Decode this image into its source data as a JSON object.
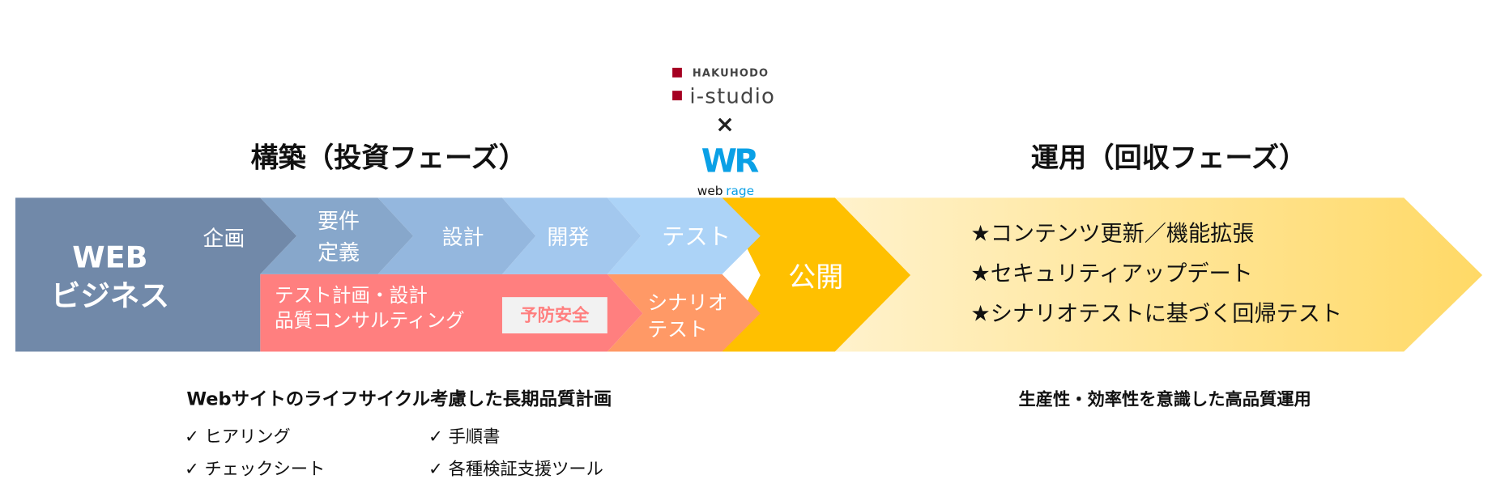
{
  "logo": {
    "hakuhodo": "HAKUHODO",
    "istudio": "i-studio",
    "times": "×",
    "webrage_mark": "WR",
    "webrage_web": "web",
    "webrage_rage": "rage"
  },
  "headings": {
    "build": "構築（投資フェーズ）",
    "operate": "運用（回収フェーズ）"
  },
  "flow": {
    "web_business": [
      "WEB",
      "ビジネス"
    ],
    "planning": "企画",
    "requirements": [
      "要件",
      "定義"
    ],
    "design": "設計",
    "development": "開発",
    "test": "テスト",
    "test_planning": [
      "テスト計画・設計",
      "品質コンサルティング"
    ],
    "prevention_badge": "予防安全",
    "scenario_test": [
      "シナリオ",
      "テスト"
    ],
    "release": "公開",
    "operations": [
      "★コンテンツ更新／機能拡張",
      "★セキュリティアップデート",
      "★シナリオテストに基づく回帰テスト"
    ]
  },
  "notes": {
    "build_title": "Webサイトのライフサイクル考慮した長期品質計画",
    "build_items": [
      "✓ ヒアリング",
      "✓ 手順書",
      "✓ チェックシート",
      "✓ 各種検証支援ツール"
    ],
    "operate_title": "生産性・効率性を意識した高品質運用"
  },
  "colors": {
    "web_business": "#7189a9",
    "requirements": "#87a7cb",
    "design": "#94b7de",
    "development": "#a3c8ee",
    "test": "#acd3f7",
    "test_planning": "#ff7f7f",
    "scenario_test": "#ff9966",
    "release": "#ffc000",
    "operations_start": "#fff2cc",
    "operations_end": "#ffd966",
    "hakuhodo_red": "#a50021",
    "webrage_blue": "#0aa0e6"
  }
}
